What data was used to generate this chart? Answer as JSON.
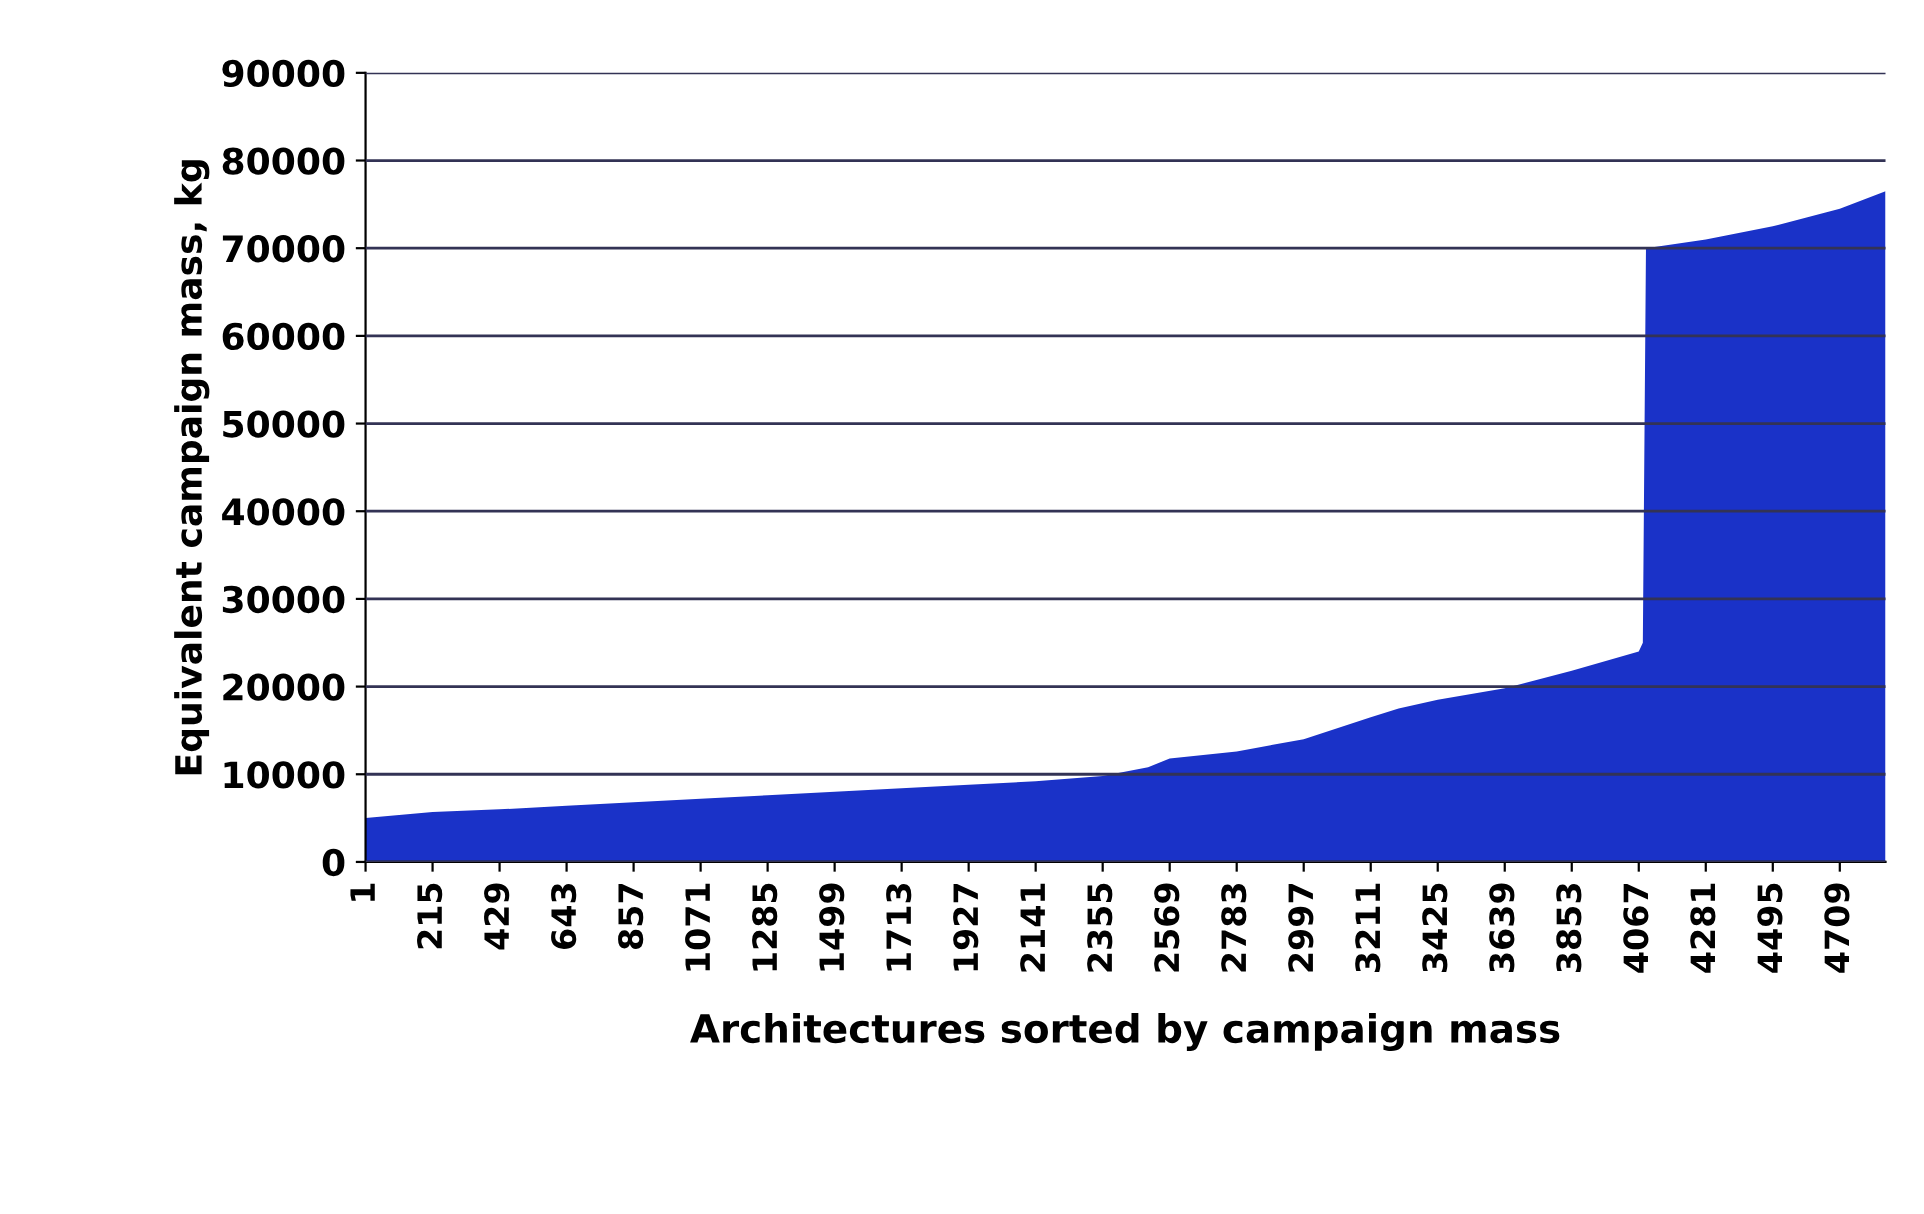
{
  "chart_data": {
    "type": "area",
    "xlabel": "Architectures sorted by campaign mass",
    "ylabel": "Equivalent campaign mass, kg",
    "x": [
      1,
      215,
      429,
      643,
      857,
      1071,
      1285,
      1499,
      1713,
      1927,
      2141,
      2355,
      2500,
      2569,
      2783,
      2997,
      3211,
      3300,
      3425,
      3639,
      3853,
      4067,
      4080,
      4090,
      4281,
      4495,
      4709,
      4855
    ],
    "series": [
      {
        "color": "#1a32c8",
        "values": [
          5000,
          5700,
          6000,
          6400,
          6800,
          7200,
          7600,
          8000,
          8400,
          8800,
          9200,
          9800,
          10800,
          11800,
          12600,
          14000,
          16500,
          17500,
          18500,
          19800,
          21800,
          24000,
          25000,
          70000,
          71000,
          72500,
          74500,
          76500
        ]
      }
    ],
    "xlim": [
      1,
      4855
    ],
    "xticks": [
      1,
      215,
      429,
      643,
      857,
      1071,
      1285,
      1499,
      1713,
      1927,
      2141,
      2355,
      2569,
      2783,
      2997,
      3211,
      3425,
      3639,
      3853,
      4067,
      4281,
      4495,
      4709
    ],
    "ylim": [
      0,
      90000
    ],
    "yticks": [
      0,
      10000,
      20000,
      30000,
      40000,
      50000,
      60000,
      70000,
      80000,
      90000
    ],
    "grid": "y",
    "legend": false
  }
}
